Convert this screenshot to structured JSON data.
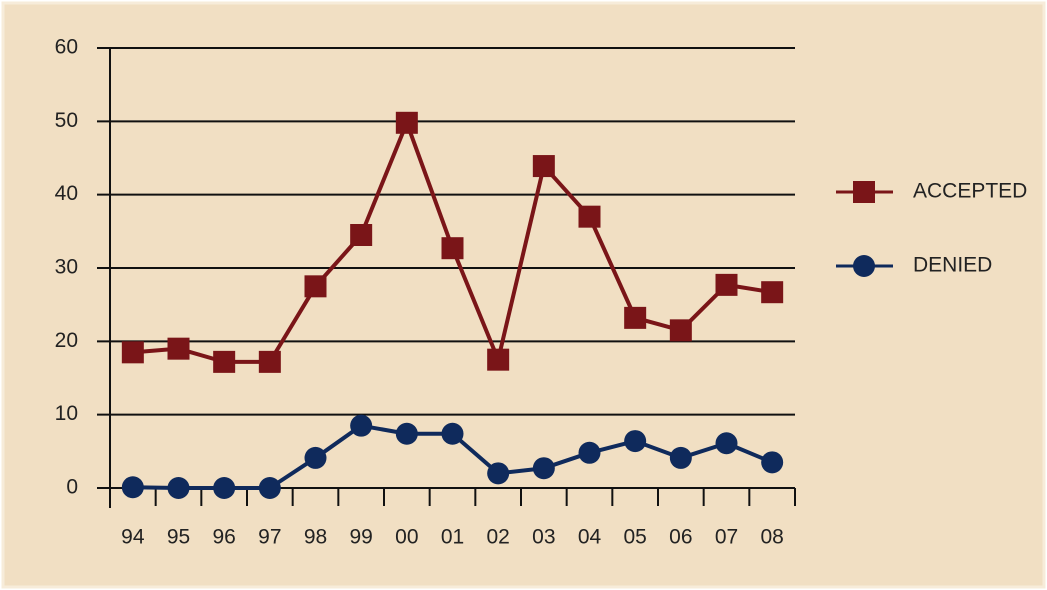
{
  "chart_data": {
    "type": "line",
    "categories": [
      "94",
      "95",
      "96",
      "97",
      "98",
      "99",
      "00",
      "01",
      "02",
      "03",
      "04",
      "05",
      "06",
      "07",
      "08"
    ],
    "series": [
      {
        "name": "ACCEPTED",
        "color": "#7a1518",
        "marker": "square",
        "values": [
          18.5,
          19,
          17.2,
          17.2,
          27.5,
          34.5,
          49.8,
          32.7,
          17.5,
          43.9,
          37,
          23.2,
          21.5,
          27.7,
          26.7
        ]
      },
      {
        "name": "DENIED",
        "color": "#0f2a5c",
        "marker": "circle",
        "values": [
          0.1,
          0,
          0,
          0,
          4.1,
          8.5,
          7.4,
          7.4,
          2,
          2.7,
          4.8,
          6.4,
          4.1,
          6.1,
          3.5
        ]
      }
    ],
    "ylim": [
      0,
      60
    ],
    "yticks": [
      0,
      10,
      20,
      30,
      40,
      50,
      60
    ],
    "grid": true,
    "legend": "right"
  }
}
